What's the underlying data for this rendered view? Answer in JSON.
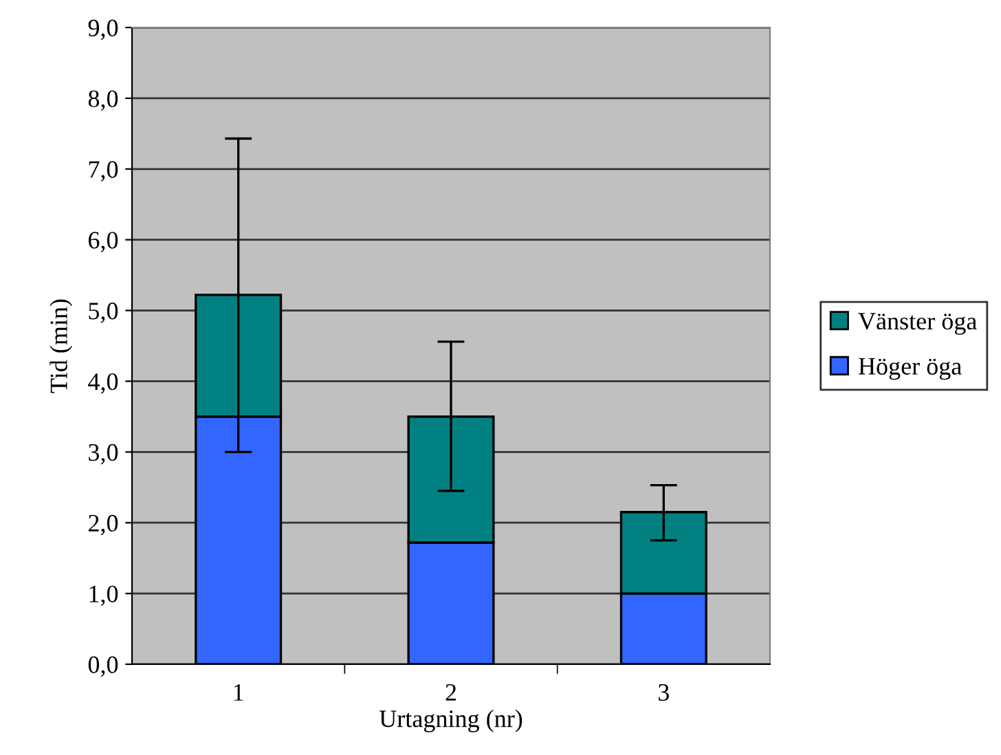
{
  "chart_data": {
    "type": "bar",
    "stacked": true,
    "xlabel": "Urtagning (nr)",
    "ylabel": "Tid (min)",
    "categories": [
      "1",
      "2",
      "3"
    ],
    "series": [
      {
        "name": "Höger öga",
        "color": "#3366ff",
        "values": [
          3.5,
          1.72,
          1.0
        ]
      },
      {
        "name": "Vänster öga",
        "color": "#008080",
        "values": [
          1.72,
          1.78,
          1.15
        ],
        "errors": [
          [
            3.0,
            7.43
          ],
          [
            2.45,
            4.56
          ],
          [
            1.75,
            2.53
          ]
        ]
      }
    ],
    "ylim": [
      0,
      9
    ],
    "yticks": [
      {
        "value": 0,
        "label": "0,0"
      },
      {
        "value": 1,
        "label": "1,0"
      },
      {
        "value": 2,
        "label": "2,0"
      },
      {
        "value": 3,
        "label": "3,0"
      },
      {
        "value": 4,
        "label": "4,0"
      },
      {
        "value": 5,
        "label": "5,0"
      },
      {
        "value": 6,
        "label": "6,0"
      },
      {
        "value": 7,
        "label": "7,0"
      },
      {
        "value": 8,
        "label": "8,0"
      },
      {
        "value": 9,
        "label": "9,0"
      }
    ],
    "grid": "y",
    "legend": "right"
  }
}
